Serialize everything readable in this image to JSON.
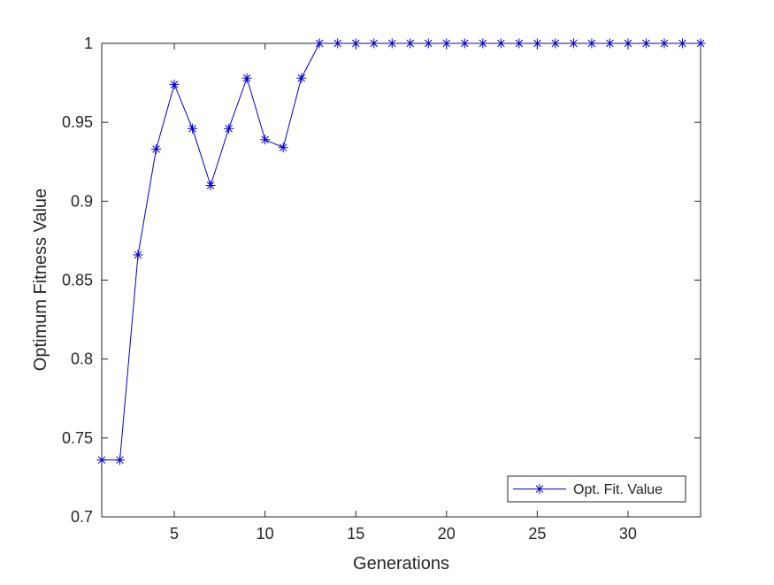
{
  "chart_data": {
    "type": "line",
    "title": "",
    "xlabel": "Generations",
    "ylabel": "Optimum Fitness Value",
    "xlim": [
      1,
      34
    ],
    "ylim": [
      0.7,
      1.0
    ],
    "x_ticks": [
      5,
      10,
      15,
      20,
      25,
      30
    ],
    "y_ticks": [
      0.7,
      0.75,
      0.8,
      0.85,
      0.9,
      0.95,
      1.0
    ],
    "x_tick_labels": [
      "5",
      "10",
      "15",
      "20",
      "25",
      "30"
    ],
    "y_tick_labels": [
      "0.7",
      "0.75",
      "0.8",
      "0.85",
      "0.9",
      "0.95",
      "1"
    ],
    "grid": false,
    "legend_position": "bottom-right",
    "series": [
      {
        "name": "Opt. Fit. Value",
        "color": "#0000cc",
        "marker": "asterisk",
        "x": [
          1,
          2,
          3,
          4,
          5,
          6,
          7,
          8,
          9,
          10,
          11,
          12,
          13,
          14,
          15,
          16,
          17,
          18,
          19,
          20,
          21,
          22,
          23,
          24,
          25,
          26,
          27,
          28,
          29,
          30,
          31,
          32,
          33,
          34
        ],
        "values": [
          0.736,
          0.736,
          0.866,
          0.933,
          0.974,
          0.946,
          0.91,
          0.946,
          0.978,
          0.939,
          0.934,
          0.978,
          1.0,
          1.0,
          1.0,
          1.0,
          1.0,
          1.0,
          1.0,
          1.0,
          1.0,
          1.0,
          1.0,
          1.0,
          1.0,
          1.0,
          1.0,
          1.0,
          1.0,
          1.0,
          1.0,
          1.0,
          1.0,
          1.0
        ]
      }
    ]
  }
}
